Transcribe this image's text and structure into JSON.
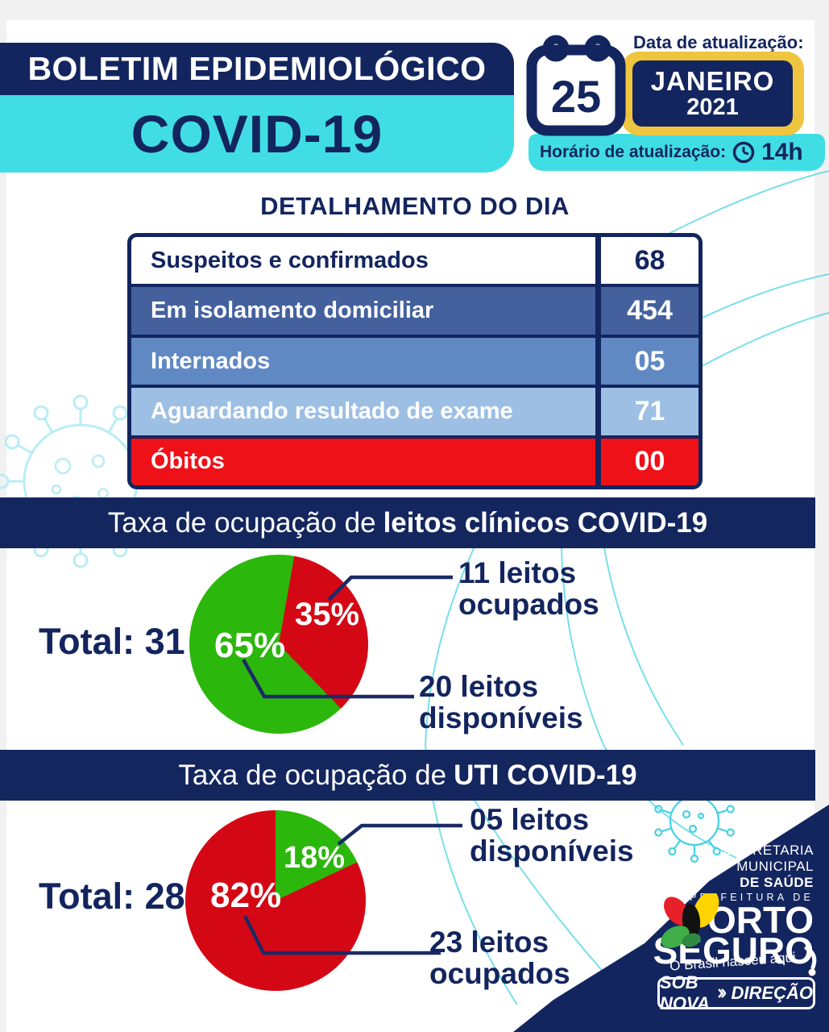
{
  "header": {
    "title": "BOLETIM EPIDEMIOLÓGICO",
    "subtitle": "COVID-19",
    "navy": "#13255e",
    "cyan": "#41dde4"
  },
  "update": {
    "date_label": "Data de atualização:",
    "day": "25",
    "month": "JANEIRO",
    "year": "2021",
    "time_label": "Horário de atualização:",
    "time": "14h",
    "yellow": "#efc53f"
  },
  "daily": {
    "title": "DETALHAMENTO DO DIA",
    "rows": [
      {
        "label": "Suspeitos e confirmados",
        "value": "68",
        "bg": "#ffffff",
        "fg": "#13255e"
      },
      {
        "label": "Em isolamento domiciliar",
        "value": "454",
        "bg": "#44619e",
        "fg": "#ffffff"
      },
      {
        "label": "Internados",
        "value": "05",
        "bg": "#6089c4",
        "fg": "#ffffff"
      },
      {
        "label": "Aguardando resultado de exame",
        "value": "71",
        "bg": "#9dbfe4",
        "fg": "#ffffff"
      },
      {
        "label": "Óbitos",
        "value": "00",
        "bg": "#ee1118",
        "fg": "#ffffff"
      }
    ]
  },
  "clinical": {
    "banner_prefix": "Taxa de ocupação de",
    "banner_bold": "leitos clínicos COVID-19",
    "total": "Total: 31",
    "pct_occupied": "35%",
    "pct_available": "65%",
    "callout_occupied": {
      "line1": "11 leitos",
      "line2": "ocupados"
    },
    "callout_available": {
      "line1": "20 leitos",
      "line2": "disponíveis"
    }
  },
  "icu": {
    "banner_prefix": "Taxa de ocupação de",
    "banner_bold": "UTI COVID-19",
    "total": "Total: 28",
    "pct_occupied": "82%",
    "pct_available": "18%",
    "callout_available": {
      "line1": "05 leitos",
      "line2": "disponíveis"
    },
    "callout_occupied": {
      "line1": "23 leitos",
      "line2": "ocupados"
    }
  },
  "footer": {
    "secretaria_line1": "SECRETARIA",
    "secretaria_line2": "MUNICIPAL",
    "secretaria_line3": "DE SAÚDE",
    "prefeitura_de": "PREFEITURA DE",
    "city_line1": "PORTO",
    "city_line2": "SEGURO",
    "tagline": "O Brasil nasceu aqui",
    "badge_left": "SOB NOVA",
    "badge_right": "DIREÇÃO"
  },
  "chart_data": [
    {
      "type": "pie",
      "title": "Taxa de ocupação de leitos clínicos COVID-19",
      "total": 31,
      "start_angle_deg": 10,
      "legend_position": "right-callouts",
      "slices": [
        {
          "label": "11 leitos ocupados",
          "value": 11,
          "pct": 35,
          "color": "#d40815"
        },
        {
          "label": "20 leitos disponíveis",
          "value": 20,
          "pct": 65,
          "color": "#2cb70c"
        }
      ]
    },
    {
      "type": "pie",
      "title": "Taxa de ocupação de UTI COVID-19",
      "total": 28,
      "start_angle_deg": 0,
      "legend_position": "right-callouts",
      "slices": [
        {
          "label": "05 leitos disponíveis",
          "value": 5,
          "pct": 18,
          "color": "#2cb70c"
        },
        {
          "label": "23 leitos ocupados",
          "value": 23,
          "pct": 82,
          "color": "#d40815"
        }
      ]
    }
  ]
}
